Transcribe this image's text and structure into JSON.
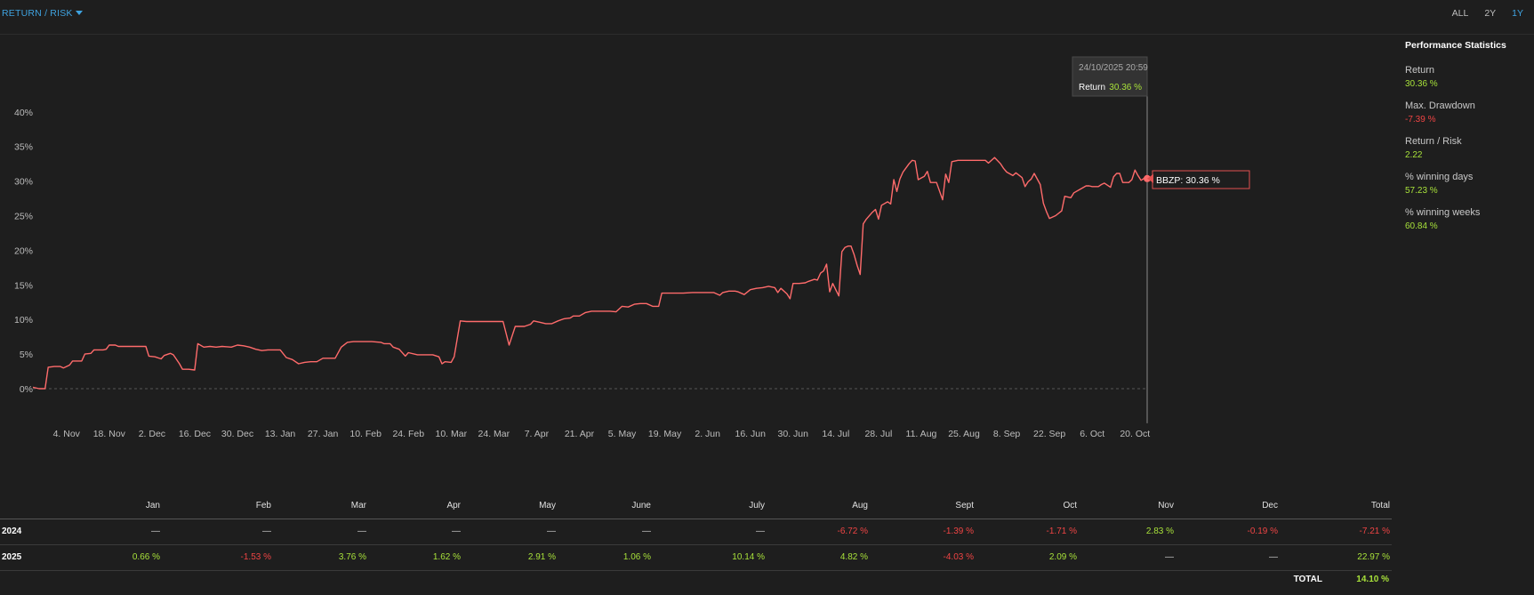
{
  "header": {
    "view_label": "RETURN / RISK",
    "ranges": [
      "ALL",
      "2Y",
      "1Y"
    ],
    "active_range": "1Y"
  },
  "stats": {
    "title": "Performance Statistics",
    "items": [
      {
        "label": "Return",
        "value": "30.36 %",
        "sign": "pos"
      },
      {
        "label": "Max. Drawdown",
        "value": "-7.39 %",
        "sign": "neg"
      },
      {
        "label": "Return / Risk",
        "value": "2.22",
        "sign": "pos"
      },
      {
        "label": "% winning days",
        "value": "57.23 %",
        "sign": "pos"
      },
      {
        "label": "% winning weeks",
        "value": "60.84 %",
        "sign": "pos"
      }
    ]
  },
  "tooltip": {
    "date": "24/10/2025 20:59",
    "label": "Return",
    "value": "30.36 %",
    "series_label": "BBZP: 30.36 %"
  },
  "colors": {
    "line": "#ff6b6b",
    "positive": "#a8e23a",
    "negative": "#ef4444",
    "accent": "#3fa3e0",
    "background": "#1e1e1e"
  },
  "chart_data": {
    "type": "line",
    "ylim": [
      -5,
      42
    ],
    "y_ticks": [
      0,
      5,
      10,
      15,
      20,
      25,
      30,
      35,
      40
    ],
    "y_tick_labels": [
      "0%",
      "5%",
      "10%",
      "15%",
      "20%",
      "25%",
      "30%",
      "35%",
      "40%"
    ],
    "x_start": "2024-10-24",
    "x_end": "2025-10-24",
    "x_ticks": [
      {
        "date": "2024-11-04",
        "label": "4. Nov"
      },
      {
        "date": "2024-11-18",
        "label": "18. Nov"
      },
      {
        "date": "2024-12-02",
        "label": "2. Dec"
      },
      {
        "date": "2024-12-16",
        "label": "16. Dec"
      },
      {
        "date": "2024-12-30",
        "label": "30. Dec"
      },
      {
        "date": "2025-01-13",
        "label": "13. Jan"
      },
      {
        "date": "2025-01-27",
        "label": "27. Jan"
      },
      {
        "date": "2025-02-10",
        "label": "10. Feb"
      },
      {
        "date": "2025-02-24",
        "label": "24. Feb"
      },
      {
        "date": "2025-03-10",
        "label": "10. Mar"
      },
      {
        "date": "2025-03-24",
        "label": "24. Mar"
      },
      {
        "date": "2025-04-07",
        "label": "7. Apr"
      },
      {
        "date": "2025-04-21",
        "label": "21. Apr"
      },
      {
        "date": "2025-05-05",
        "label": "5. May"
      },
      {
        "date": "2025-05-19",
        "label": "19. May"
      },
      {
        "date": "2025-06-02",
        "label": "2. Jun"
      },
      {
        "date": "2025-06-16",
        "label": "16. Jun"
      },
      {
        "date": "2025-06-30",
        "label": "30. Jun"
      },
      {
        "date": "2025-07-14",
        "label": "14. Jul"
      },
      {
        "date": "2025-07-28",
        "label": "28. Jul"
      },
      {
        "date": "2025-08-11",
        "label": "11. Aug"
      },
      {
        "date": "2025-08-25",
        "label": "25. Aug"
      },
      {
        "date": "2025-09-08",
        "label": "8. Sep"
      },
      {
        "date": "2025-09-22",
        "label": "22. Sep"
      },
      {
        "date": "2025-10-06",
        "label": "6. Oct"
      },
      {
        "date": "2025-10-20",
        "label": "20. Oct"
      }
    ],
    "series": [
      {
        "name": "BBZP",
        "points": [
          [
            "2024-10-24",
            0.2
          ],
          [
            "2024-10-26",
            0.0
          ],
          [
            "2024-10-28",
            0.0
          ],
          [
            "2024-10-29",
            3.1
          ],
          [
            "2024-10-31",
            3.2
          ],
          [
            "2024-11-02",
            3.2
          ],
          [
            "2024-11-03",
            3.0
          ],
          [
            "2024-11-05",
            3.4
          ],
          [
            "2024-11-06",
            4.0
          ],
          [
            "2024-11-08",
            4.0
          ],
          [
            "2024-11-09",
            4.0
          ],
          [
            "2024-11-10",
            5.0
          ],
          [
            "2024-11-12",
            5.1
          ],
          [
            "2024-11-13",
            5.6
          ],
          [
            "2024-11-16",
            5.6
          ],
          [
            "2024-11-17",
            5.7
          ],
          [
            "2024-11-18",
            6.3
          ],
          [
            "2024-11-20",
            6.3
          ],
          [
            "2024-11-21",
            6.1
          ],
          [
            "2024-11-24",
            6.1
          ],
          [
            "2024-11-30",
            6.1
          ],
          [
            "2024-12-01",
            4.7
          ],
          [
            "2024-12-03",
            4.6
          ],
          [
            "2024-12-05",
            4.3
          ],
          [
            "2024-12-06",
            4.8
          ],
          [
            "2024-12-08",
            5.1
          ],
          [
            "2024-12-09",
            4.9
          ],
          [
            "2024-12-11",
            3.6
          ],
          [
            "2024-12-12",
            2.8
          ],
          [
            "2024-12-14",
            2.8
          ],
          [
            "2024-12-16",
            2.7
          ],
          [
            "2024-12-17",
            6.5
          ],
          [
            "2024-12-19",
            6.0
          ],
          [
            "2024-12-21",
            6.1
          ],
          [
            "2024-12-23",
            6.0
          ],
          [
            "2024-12-25",
            6.1
          ],
          [
            "2024-12-28",
            6.0
          ],
          [
            "2024-12-30",
            6.3
          ],
          [
            "2025-01-01",
            6.2
          ],
          [
            "2025-01-03",
            6.0
          ],
          [
            "2025-01-05",
            5.7
          ],
          [
            "2025-01-07",
            5.5
          ],
          [
            "2025-01-09",
            5.6
          ],
          [
            "2025-01-11",
            5.6
          ],
          [
            "2025-01-13",
            5.6
          ],
          [
            "2025-01-15",
            4.5
          ],
          [
            "2025-01-17",
            4.2
          ],
          [
            "2025-01-19",
            3.6
          ],
          [
            "2025-01-21",
            3.8
          ],
          [
            "2025-01-23",
            3.9
          ],
          [
            "2025-01-25",
            3.9
          ],
          [
            "2025-01-27",
            4.4
          ],
          [
            "2025-01-29",
            4.4
          ],
          [
            "2025-01-31",
            4.4
          ],
          [
            "2025-02-02",
            6.0
          ],
          [
            "2025-02-04",
            6.7
          ],
          [
            "2025-02-06",
            6.8
          ],
          [
            "2025-02-09",
            6.8
          ],
          [
            "2025-02-12",
            6.8
          ],
          [
            "2025-02-15",
            6.7
          ],
          [
            "2025-02-16",
            6.5
          ],
          [
            "2025-02-18",
            6.5
          ],
          [
            "2025-02-19",
            6.0
          ],
          [
            "2025-02-21",
            5.7
          ],
          [
            "2025-02-23",
            4.7
          ],
          [
            "2025-02-24",
            5.2
          ],
          [
            "2025-02-27",
            4.9
          ],
          [
            "2025-03-01",
            4.9
          ],
          [
            "2025-03-04",
            4.9
          ],
          [
            "2025-03-06",
            4.6
          ],
          [
            "2025-03-07",
            3.6
          ],
          [
            "2025-03-08",
            3.9
          ],
          [
            "2025-03-10",
            3.8
          ],
          [
            "2025-03-11",
            4.6
          ],
          [
            "2025-03-13",
            9.8
          ],
          [
            "2025-03-15",
            9.7
          ],
          [
            "2025-03-20",
            9.7
          ],
          [
            "2025-03-25",
            9.7
          ],
          [
            "2025-03-27",
            9.7
          ],
          [
            "2025-03-29",
            6.3
          ],
          [
            "2025-03-31",
            9.0
          ],
          [
            "2025-04-03",
            9.0
          ],
          [
            "2025-04-05",
            9.3
          ],
          [
            "2025-04-06",
            9.8
          ],
          [
            "2025-04-08",
            9.6
          ],
          [
            "2025-04-10",
            9.4
          ],
          [
            "2025-04-12",
            9.4
          ],
          [
            "2025-04-14",
            9.8
          ],
          [
            "2025-04-16",
            10.1
          ],
          [
            "2025-04-18",
            10.2
          ],
          [
            "2025-04-19",
            10.5
          ],
          [
            "2025-04-21",
            10.5
          ],
          [
            "2025-04-23",
            11.0
          ],
          [
            "2025-04-25",
            11.2
          ],
          [
            "2025-04-27",
            11.2
          ],
          [
            "2025-05-01",
            11.2
          ],
          [
            "2025-05-03",
            11.1
          ],
          [
            "2025-05-05",
            11.9
          ],
          [
            "2025-05-07",
            11.8
          ],
          [
            "2025-05-09",
            12.2
          ],
          [
            "2025-05-11",
            12.3
          ],
          [
            "2025-05-13",
            12.3
          ],
          [
            "2025-05-15",
            11.9
          ],
          [
            "2025-05-17",
            11.9
          ],
          [
            "2025-05-18",
            13.8
          ],
          [
            "2025-05-21",
            13.8
          ],
          [
            "2025-05-25",
            13.8
          ],
          [
            "2025-05-28",
            13.9
          ],
          [
            "2025-05-31",
            13.9
          ],
          [
            "2025-06-02",
            13.9
          ],
          [
            "2025-06-04",
            13.9
          ],
          [
            "2025-06-06",
            13.5
          ],
          [
            "2025-06-07",
            13.9
          ],
          [
            "2025-06-09",
            14.1
          ],
          [
            "2025-06-11",
            14.1
          ],
          [
            "2025-06-12",
            14.0
          ],
          [
            "2025-06-14",
            13.6
          ],
          [
            "2025-06-16",
            14.3
          ],
          [
            "2025-06-18",
            14.5
          ],
          [
            "2025-06-20",
            14.6
          ],
          [
            "2025-06-22",
            14.8
          ],
          [
            "2025-06-24",
            14.6
          ],
          [
            "2025-06-25",
            13.9
          ],
          [
            "2025-06-26",
            14.5
          ],
          [
            "2025-06-28",
            13.7
          ],
          [
            "2025-06-29",
            13.0
          ],
          [
            "2025-06-30",
            15.2
          ],
          [
            "2025-07-02",
            15.2
          ],
          [
            "2025-07-04",
            15.3
          ],
          [
            "2025-07-05",
            15.5
          ],
          [
            "2025-07-07",
            15.8
          ],
          [
            "2025-07-08",
            15.7
          ],
          [
            "2025-07-09",
            16.7
          ],
          [
            "2025-07-10",
            17.0
          ],
          [
            "2025-07-11",
            18.0
          ],
          [
            "2025-07-12",
            14.0
          ],
          [
            "2025-07-13",
            15.2
          ],
          [
            "2025-07-14",
            14.3
          ],
          [
            "2025-07-15",
            13.4
          ],
          [
            "2025-07-16",
            19.8
          ],
          [
            "2025-07-17",
            20.4
          ],
          [
            "2025-07-18",
            20.6
          ],
          [
            "2025-07-19",
            20.6
          ],
          [
            "2025-07-20",
            19.4
          ],
          [
            "2025-07-21",
            17.8
          ],
          [
            "2025-07-22",
            16.5
          ],
          [
            "2025-07-23",
            23.8
          ],
          [
            "2025-07-24",
            24.5
          ],
          [
            "2025-07-26",
            25.5
          ],
          [
            "2025-07-27",
            25.9
          ],
          [
            "2025-07-28",
            24.5
          ],
          [
            "2025-07-29",
            26.5
          ],
          [
            "2025-07-31",
            27.0
          ],
          [
            "2025-08-01",
            26.7
          ],
          [
            "2025-08-02",
            30.2
          ],
          [
            "2025-08-03",
            28.5
          ],
          [
            "2025-08-04",
            30.3
          ],
          [
            "2025-08-05",
            31.3
          ],
          [
            "2025-08-07",
            32.5
          ],
          [
            "2025-08-08",
            33.0
          ],
          [
            "2025-08-09",
            32.9
          ],
          [
            "2025-08-10",
            30.2
          ],
          [
            "2025-08-12",
            30.7
          ],
          [
            "2025-08-13",
            31.4
          ],
          [
            "2025-08-14",
            29.8
          ],
          [
            "2025-08-15",
            29.8
          ],
          [
            "2025-08-16",
            29.8
          ],
          [
            "2025-08-18",
            27.3
          ],
          [
            "2025-08-19",
            31.0
          ],
          [
            "2025-08-20",
            29.8
          ],
          [
            "2025-08-21",
            32.8
          ],
          [
            "2025-08-23",
            33.0
          ],
          [
            "2025-08-25",
            33.0
          ],
          [
            "2025-08-28",
            33.0
          ],
          [
            "2025-09-01",
            33.0
          ],
          [
            "2025-09-02",
            32.6
          ],
          [
            "2025-09-04",
            33.4
          ],
          [
            "2025-09-06",
            32.5
          ],
          [
            "2025-09-07",
            31.8
          ],
          [
            "2025-09-08",
            31.3
          ],
          [
            "2025-09-10",
            30.8
          ],
          [
            "2025-09-11",
            31.2
          ],
          [
            "2025-09-13",
            30.5
          ],
          [
            "2025-09-14",
            29.2
          ],
          [
            "2025-09-15",
            29.9
          ],
          [
            "2025-09-16",
            30.3
          ],
          [
            "2025-09-17",
            31.1
          ],
          [
            "2025-09-19",
            29.5
          ],
          [
            "2025-09-20",
            26.8
          ],
          [
            "2025-09-21",
            25.6
          ],
          [
            "2025-09-22",
            24.6
          ],
          [
            "2025-09-24",
            25.0
          ],
          [
            "2025-09-26",
            25.7
          ],
          [
            "2025-09-27",
            27.8
          ],
          [
            "2025-09-29",
            27.6
          ],
          [
            "2025-09-30",
            28.3
          ],
          [
            "2025-10-02",
            28.8
          ],
          [
            "2025-10-04",
            29.3
          ],
          [
            "2025-10-05",
            29.3
          ],
          [
            "2025-10-06",
            29.2
          ],
          [
            "2025-10-08",
            29.2
          ],
          [
            "2025-10-09",
            29.5
          ],
          [
            "2025-10-10",
            29.7
          ],
          [
            "2025-10-12",
            29.1
          ],
          [
            "2025-10-13",
            30.6
          ],
          [
            "2025-10-14",
            31.1
          ],
          [
            "2025-10-15",
            31.1
          ],
          [
            "2025-10-16",
            29.8
          ],
          [
            "2025-10-18",
            29.8
          ],
          [
            "2025-10-19",
            30.2
          ],
          [
            "2025-10-20",
            31.6
          ],
          [
            "2025-10-21",
            30.8
          ],
          [
            "2025-10-22",
            30.1
          ],
          [
            "2025-10-23",
            30.4
          ],
          [
            "2025-10-24",
            30.36
          ]
        ]
      }
    ]
  },
  "monthly": {
    "columns": [
      "Jan",
      "Feb",
      "Mar",
      "Apr",
      "May",
      "June",
      "July",
      "Aug",
      "Sept",
      "Oct",
      "Nov",
      "Dec",
      "Total"
    ],
    "rows": [
      {
        "year": "2024",
        "values": [
          "—",
          "—",
          "—",
          "—",
          "—",
          "—",
          "—",
          "-6.72 %",
          "-1.39 %",
          "-1.71 %",
          "2.83 %",
          "-0.19 %",
          "-7.21 %"
        ]
      },
      {
        "year": "2025",
        "values": [
          "0.66 %",
          "-1.53 %",
          "3.76 %",
          "1.62 %",
          "2.91 %",
          "1.06 %",
          "10.14 %",
          "4.82 %",
          "-4.03 %",
          "2.09 %",
          "—",
          "—",
          "22.97 %"
        ]
      }
    ],
    "total_label": "TOTAL",
    "total_value": "14.10 %"
  }
}
